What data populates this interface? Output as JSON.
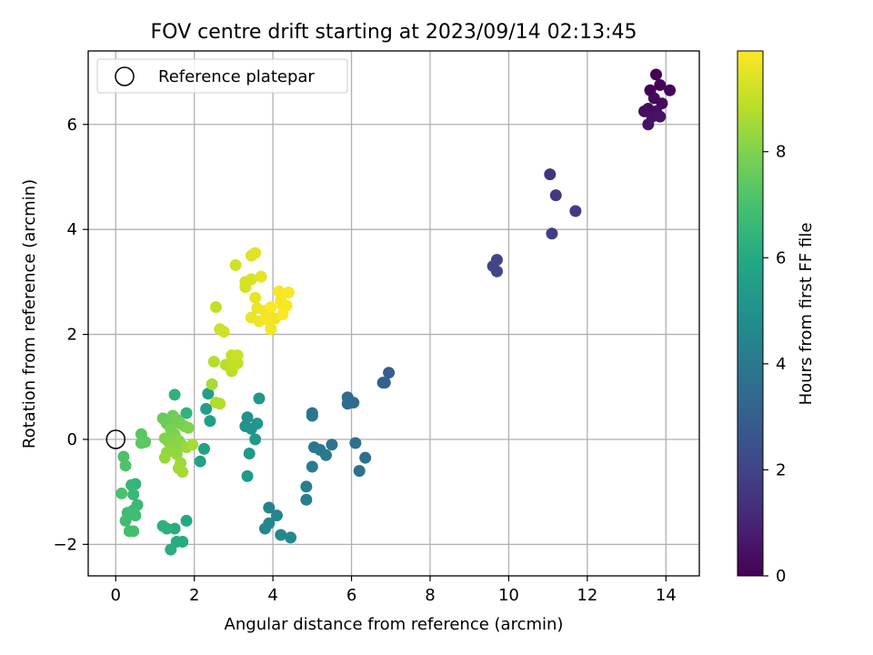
{
  "chart_data": {
    "type": "scatter",
    "title": "FOV centre drift starting at 2023/09/14 02:13:45",
    "xlabel": "Angular distance from reference (arcmin)",
    "ylabel": "Rotation from reference (arcmin)",
    "xlim": [
      -0.7,
      14.85
    ],
    "ylim": [
      -2.6,
      7.4
    ],
    "xticks": [
      "0",
      "2",
      "4",
      "6",
      "8",
      "10",
      "12",
      "14"
    ],
    "yticks": [
      "−2",
      "0",
      "2",
      "4",
      "6"
    ],
    "grid": true,
    "legend": {
      "position": "top-left",
      "entries": [
        "Reference platepar"
      ]
    },
    "reference_point": {
      "x": 0,
      "y": 0
    },
    "colorbar": {
      "label": "Hours from first FF file",
      "colormap": "viridis",
      "range": [
        0,
        9.9
      ],
      "ticks": [
        "0",
        "2",
        "4",
        "6",
        "8"
      ]
    },
    "points": [
      {
        "x": 13.75,
        "y": 6.95,
        "c": 0.0
      },
      {
        "x": 13.6,
        "y": 6.65,
        "c": 0.05
      },
      {
        "x": 13.85,
        "y": 6.75,
        "c": 0.1
      },
      {
        "x": 14.1,
        "y": 6.65,
        "c": 0.15
      },
      {
        "x": 13.7,
        "y": 6.5,
        "c": 0.2
      },
      {
        "x": 13.9,
        "y": 6.4,
        "c": 0.25
      },
      {
        "x": 13.55,
        "y": 6.3,
        "c": 0.3
      },
      {
        "x": 13.75,
        "y": 6.25,
        "c": 0.35
      },
      {
        "x": 13.45,
        "y": 6.25,
        "c": 0.4
      },
      {
        "x": 13.65,
        "y": 6.15,
        "c": 0.45
      },
      {
        "x": 13.85,
        "y": 6.15,
        "c": 0.5
      },
      {
        "x": 13.55,
        "y": 6.0,
        "c": 0.55
      },
      {
        "x": 11.05,
        "y": 5.05,
        "c": 1.5
      },
      {
        "x": 11.2,
        "y": 4.65,
        "c": 1.6
      },
      {
        "x": 11.7,
        "y": 4.35,
        "c": 1.7
      },
      {
        "x": 11.1,
        "y": 3.92,
        "c": 1.8
      },
      {
        "x": 9.7,
        "y": 3.42,
        "c": 2.0
      },
      {
        "x": 9.6,
        "y": 3.3,
        "c": 2.05
      },
      {
        "x": 9.7,
        "y": 3.2,
        "c": 2.1
      },
      {
        "x": 6.95,
        "y": 1.27,
        "c": 3.0
      },
      {
        "x": 6.8,
        "y": 1.08,
        "c": 3.05
      },
      {
        "x": 6.85,
        "y": 1.08,
        "c": 3.1
      },
      {
        "x": 5.9,
        "y": 0.8,
        "c": 3.4
      },
      {
        "x": 6.05,
        "y": 0.7,
        "c": 3.45
      },
      {
        "x": 5.9,
        "y": 0.68,
        "c": 3.5
      },
      {
        "x": 5.0,
        "y": 0.5,
        "c": 3.8
      },
      {
        "x": 5.0,
        "y": 0.45,
        "c": 3.85
      },
      {
        "x": 6.1,
        "y": -0.07,
        "c": 3.6
      },
      {
        "x": 6.35,
        "y": -0.35,
        "c": 3.65
      },
      {
        "x": 6.2,
        "y": -0.6,
        "c": 3.7
      },
      {
        "x": 5.5,
        "y": -0.1,
        "c": 3.9
      },
      {
        "x": 5.05,
        "y": -0.15,
        "c": 3.95
      },
      {
        "x": 5.2,
        "y": -0.2,
        "c": 4.0
      },
      {
        "x": 5.35,
        "y": -0.3,
        "c": 4.05
      },
      {
        "x": 5.0,
        "y": -0.52,
        "c": 4.1
      },
      {
        "x": 4.85,
        "y": -0.9,
        "c": 4.2
      },
      {
        "x": 4.85,
        "y": -1.15,
        "c": 4.25
      },
      {
        "x": 3.9,
        "y": -1.3,
        "c": 4.4
      },
      {
        "x": 4.1,
        "y": -1.45,
        "c": 4.45
      },
      {
        "x": 3.9,
        "y": -1.6,
        "c": 4.5
      },
      {
        "x": 3.8,
        "y": -1.7,
        "c": 4.55
      },
      {
        "x": 4.2,
        "y": -1.82,
        "c": 4.6
      },
      {
        "x": 4.45,
        "y": -1.87,
        "c": 4.65
      },
      {
        "x": 3.35,
        "y": 0.42,
        "c": 5.0
      },
      {
        "x": 3.3,
        "y": 0.25,
        "c": 5.05
      },
      {
        "x": 3.45,
        "y": 0.2,
        "c": 5.1
      },
      {
        "x": 3.6,
        "y": 0.3,
        "c": 5.15
      },
      {
        "x": 3.65,
        "y": 0.78,
        "c": 5.2
      },
      {
        "x": 3.55,
        "y": 0.0,
        "c": 5.25
      },
      {
        "x": 3.4,
        "y": -0.27,
        "c": 5.3
      },
      {
        "x": 3.35,
        "y": -0.7,
        "c": 5.35
      },
      {
        "x": 2.35,
        "y": 0.87,
        "c": 5.5
      },
      {
        "x": 2.3,
        "y": 0.58,
        "c": 5.55
      },
      {
        "x": 2.4,
        "y": 0.35,
        "c": 5.6
      },
      {
        "x": 2.25,
        "y": -0.18,
        "c": 5.65
      },
      {
        "x": 2.15,
        "y": -0.42,
        "c": 5.7
      },
      {
        "x": 1.8,
        "y": -1.55,
        "c": 6.0
      },
      {
        "x": 1.7,
        "y": -1.95,
        "c": 6.05
      },
      {
        "x": 1.55,
        "y": -1.95,
        "c": 6.1
      },
      {
        "x": 1.5,
        "y": -1.7,
        "c": 6.15
      },
      {
        "x": 1.4,
        "y": -2.1,
        "c": 6.2
      },
      {
        "x": 1.3,
        "y": -1.7,
        "c": 6.25
      },
      {
        "x": 1.2,
        "y": -1.65,
        "c": 6.3
      },
      {
        "x": 1.5,
        "y": 0.85,
        "c": 6.35
      },
      {
        "x": 1.8,
        "y": 0.5,
        "c": 6.4
      },
      {
        "x": 0.5,
        "y": -0.85,
        "c": 6.5
      },
      {
        "x": 0.4,
        "y": -0.87,
        "c": 6.55
      },
      {
        "x": 0.45,
        "y": -1.05,
        "c": 6.6
      },
      {
        "x": 0.55,
        "y": -1.25,
        "c": 6.65
      },
      {
        "x": 0.45,
        "y": -1.35,
        "c": 6.7
      },
      {
        "x": 0.3,
        "y": -1.4,
        "c": 6.75
      },
      {
        "x": 0.5,
        "y": -1.45,
        "c": 6.8
      },
      {
        "x": 0.25,
        "y": -1.55,
        "c": 6.85
      },
      {
        "x": 0.35,
        "y": -1.75,
        "c": 6.9
      },
      {
        "x": 0.45,
        "y": -1.75,
        "c": 6.95
      },
      {
        "x": 0.15,
        "y": -1.03,
        "c": 7.0
      },
      {
        "x": 0.2,
        "y": -0.33,
        "c": 7.1
      },
      {
        "x": 0.25,
        "y": -0.5,
        "c": 7.15
      },
      {
        "x": 0.65,
        "y": 0.1,
        "c": 7.3
      },
      {
        "x": 0.75,
        "y": -0.05,
        "c": 7.35
      },
      {
        "x": 0.65,
        "y": -0.07,
        "c": 7.4
      },
      {
        "x": 1.2,
        "y": 0.4,
        "c": 7.6
      },
      {
        "x": 1.3,
        "y": 0.3,
        "c": 7.65
      },
      {
        "x": 1.45,
        "y": 0.45,
        "c": 7.7
      },
      {
        "x": 1.55,
        "y": 0.38,
        "c": 7.75
      },
      {
        "x": 1.65,
        "y": 0.3,
        "c": 7.8
      },
      {
        "x": 1.75,
        "y": 0.25,
        "c": 7.85
      },
      {
        "x": 1.4,
        "y": 0.2,
        "c": 7.9
      },
      {
        "x": 1.5,
        "y": 0.1,
        "c": 7.95
      },
      {
        "x": 1.25,
        "y": 0.02,
        "c": 8.0
      },
      {
        "x": 1.35,
        "y": -0.05,
        "c": 8.05
      },
      {
        "x": 1.6,
        "y": -0.02,
        "c": 8.1
      },
      {
        "x": 1.7,
        "y": -0.12,
        "c": 8.15
      },
      {
        "x": 1.45,
        "y": -0.15,
        "c": 8.2
      },
      {
        "x": 1.3,
        "y": -0.25,
        "c": 8.25
      },
      {
        "x": 1.55,
        "y": -0.28,
        "c": 8.3
      },
      {
        "x": 1.25,
        "y": -0.35,
        "c": 8.35
      },
      {
        "x": 1.8,
        "y": -0.15,
        "c": 8.4
      },
      {
        "x": 1.65,
        "y": -0.45,
        "c": 8.45
      },
      {
        "x": 1.6,
        "y": -0.55,
        "c": 8.5
      },
      {
        "x": 1.7,
        "y": -0.62,
        "c": 8.55
      },
      {
        "x": 1.95,
        "y": -0.1,
        "c": 8.6
      },
      {
        "x": 1.85,
        "y": 0.22,
        "c": 8.0
      },
      {
        "x": 2.45,
        "y": 1.05,
        "c": 8.6
      },
      {
        "x": 2.55,
        "y": 0.7,
        "c": 8.7
      },
      {
        "x": 2.65,
        "y": 0.68,
        "c": 8.75
      },
      {
        "x": 2.5,
        "y": 1.48,
        "c": 8.8
      },
      {
        "x": 2.8,
        "y": 1.42,
        "c": 8.85
      },
      {
        "x": 2.95,
        "y": 1.3,
        "c": 8.9
      },
      {
        "x": 3.0,
        "y": 1.4,
        "c": 8.95
      },
      {
        "x": 3.1,
        "y": 1.45,
        "c": 9.0
      },
      {
        "x": 2.95,
        "y": 1.6,
        "c": 9.05
      },
      {
        "x": 3.1,
        "y": 1.6,
        "c": 9.1
      },
      {
        "x": 2.55,
        "y": 2.52,
        "c": 9.0
      },
      {
        "x": 2.65,
        "y": 2.1,
        "c": 9.1
      },
      {
        "x": 2.75,
        "y": 2.05,
        "c": 9.15
      },
      {
        "x": 3.05,
        "y": 3.32,
        "c": 9.2
      },
      {
        "x": 3.3,
        "y": 3.0,
        "c": 9.25
      },
      {
        "x": 3.3,
        "y": 2.9,
        "c": 9.3
      },
      {
        "x": 3.45,
        "y": 3.05,
        "c": 9.35
      },
      {
        "x": 3.45,
        "y": 3.5,
        "c": 9.4
      },
      {
        "x": 3.55,
        "y": 3.55,
        "c": 9.45
      },
      {
        "x": 3.7,
        "y": 3.1,
        "c": 9.5
      },
      {
        "x": 3.55,
        "y": 2.7,
        "c": 9.55
      },
      {
        "x": 3.6,
        "y": 2.5,
        "c": 9.6
      },
      {
        "x": 3.45,
        "y": 2.32,
        "c": 9.6
      },
      {
        "x": 3.65,
        "y": 2.25,
        "c": 9.65
      },
      {
        "x": 3.8,
        "y": 2.45,
        "c": 9.65
      },
      {
        "x": 3.9,
        "y": 2.4,
        "c": 9.7
      },
      {
        "x": 4.05,
        "y": 2.3,
        "c": 9.7
      },
      {
        "x": 3.95,
        "y": 2.1,
        "c": 9.75
      },
      {
        "x": 3.85,
        "y": 2.28,
        "c": 9.75
      },
      {
        "x": 4.15,
        "y": 2.82,
        "c": 9.8
      },
      {
        "x": 4.2,
        "y": 2.65,
        "c": 9.8
      },
      {
        "x": 4.25,
        "y": 2.55,
        "c": 9.82
      },
      {
        "x": 4.35,
        "y": 2.55,
        "c": 9.84
      },
      {
        "x": 4.4,
        "y": 2.8,
        "c": 9.86
      },
      {
        "x": 4.25,
        "y": 2.38,
        "c": 9.88
      },
      {
        "x": 3.95,
        "y": 2.52,
        "c": 9.9
      }
    ]
  }
}
